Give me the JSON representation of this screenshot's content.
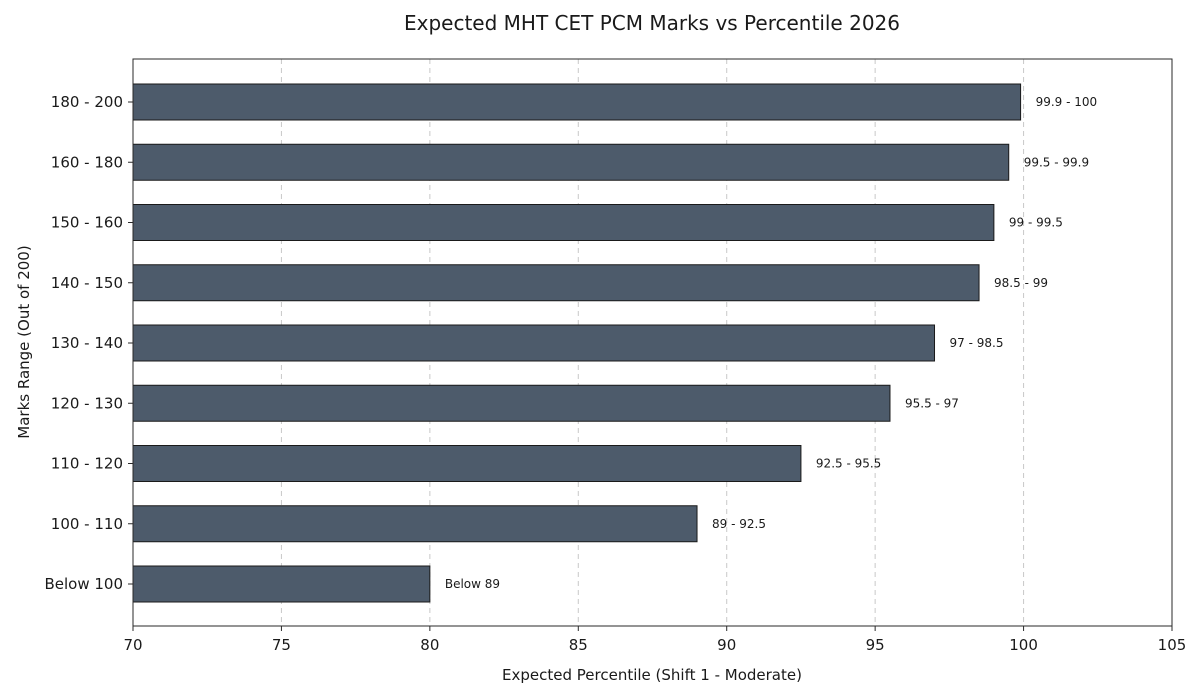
{
  "chart_data": {
    "type": "bar",
    "orientation": "horizontal",
    "title": "Expected MHT CET PCM Marks vs Percentile 2026",
    "xlabel": "Expected Percentile (Shift 1 - Moderate)",
    "ylabel": "Marks Range (Out of 200)",
    "xlim": [
      70,
      105
    ],
    "xticks": [
      70,
      75,
      80,
      85,
      90,
      95,
      100,
      105
    ],
    "grid": "vertical-dashed",
    "legend": "none",
    "bar_color": "#4d5b6b",
    "categories": [
      "180 - 200",
      "160 - 180",
      "150 - 160",
      "140 - 150",
      "130 - 140",
      "120 - 130",
      "110 - 120",
      "100 - 110",
      "Below 100"
    ],
    "values": [
      99.9,
      99.5,
      99.0,
      98.5,
      97.0,
      95.5,
      92.5,
      89.0,
      80.0
    ],
    "data_labels": [
      "99.9 - 100",
      "99.5 - 99.9",
      "99 - 99.5",
      "98.5 - 99",
      "97 - 98.5",
      "95.5 - 97",
      "92.5 - 95.5",
      "89 - 92.5",
      "Below 89"
    ]
  }
}
